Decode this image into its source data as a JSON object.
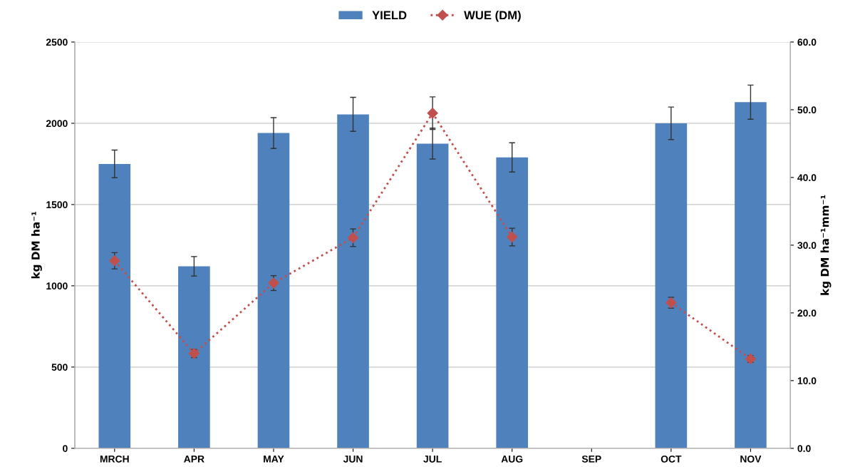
{
  "chart_data": {
    "type": "bar",
    "ylabel": "kg DM ha⁻¹",
    "y2label": "kg DM ha⁻¹mm⁻¹",
    "categories": [
      "MRCH",
      "APR",
      "MAY",
      "JUN",
      "JUL",
      "AUG",
      "SEP",
      "OCT",
      "NOV"
    ],
    "series": [
      {
        "name": "YIELD",
        "color": "#4f81bd",
        "values": [
          1750,
          1120,
          1940,
          2055,
          1875,
          1790,
          null,
          2000,
          2130
        ],
        "errors": [
          85,
          60,
          95,
          105,
          95,
          90,
          null,
          100,
          105
        ]
      },
      {
        "name": "WUE (DM)",
        "type": "line",
        "axis": "y2",
        "color": "#c0504d",
        "marker": "diamond",
        "line_style": "dotted",
        "values": [
          27.7,
          14.0,
          24.4,
          31.1,
          49.5,
          31.2,
          null,
          21.5,
          13.2
        ],
        "errors": [
          1.2,
          0.6,
          1.1,
          1.3,
          2.4,
          1.3,
          null,
          0.8,
          0.5
        ]
      }
    ],
    "ylim": [
      0,
      2500
    ],
    "yticks": [
      0,
      500,
      1000,
      1500,
      2000,
      2500
    ],
    "y2lim": [
      0,
      60
    ],
    "y2ticks": [
      {
        "value": 0,
        "label": "0.0"
      },
      {
        "value": 10,
        "label": "10.0"
      },
      {
        "value": 20,
        "label": "20.0"
      },
      {
        "value": 30,
        "label": "30.0"
      },
      {
        "value": 40,
        "label": "40.0"
      },
      {
        "value": 50,
        "label": "50.0"
      },
      {
        "value": 60,
        "label": "60.0"
      }
    ],
    "grid": "y",
    "legend": "top"
  }
}
